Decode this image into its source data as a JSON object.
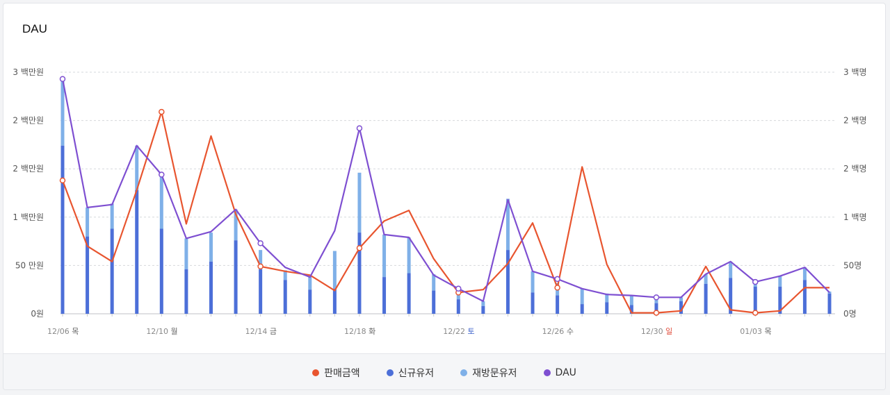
{
  "title": "DAU",
  "colors": {
    "sales": "#e8552f",
    "new_users": "#4c6fd8",
    "returning_users": "#7fb0e8",
    "dau": "#7e4fd1",
    "sunday": "#e04b3a",
    "saturday": "#3f63cc"
  },
  "legend": [
    {
      "label": "판매금액",
      "color": "#e8552f"
    },
    {
      "label": "신규유저",
      "color": "#4c6fd8"
    },
    {
      "label": "재방문유저",
      "color": "#7fb0e8"
    },
    {
      "label": "DAU",
      "color": "#7e4fd1"
    }
  ],
  "chart_data": {
    "type": "bar",
    "title": "DAU",
    "left_axis": {
      "ticks": [
        "0원",
        "50 만원",
        "1 백만원",
        "2 백만원",
        "2 백만원",
        "3 백만원"
      ],
      "tick_values": [
        0,
        50,
        100,
        150,
        200,
        250
      ],
      "range": [
        0,
        250
      ]
    },
    "right_axis": {
      "ticks": [
        "0명",
        "50명",
        "1 백명",
        "2 백명",
        "2 백명",
        "3 백명"
      ],
      "tick_values": [
        0,
        50,
        100,
        150,
        200,
        250
      ],
      "range": [
        0,
        250
      ]
    },
    "x_labels": [
      {
        "index": 0,
        "date": "12/06",
        "day": "목",
        "day_type": "normal"
      },
      {
        "index": 4,
        "date": "12/10",
        "day": "월",
        "day_type": "normal"
      },
      {
        "index": 8,
        "date": "12/14",
        "day": "금",
        "day_type": "normal"
      },
      {
        "index": 12,
        "date": "12/18",
        "day": "화",
        "day_type": "normal"
      },
      {
        "index": 16,
        "date": "12/22",
        "day": "토",
        "day_type": "saturday"
      },
      {
        "index": 20,
        "date": "12/26",
        "day": "수",
        "day_type": "normal"
      },
      {
        "index": 24,
        "date": "12/30",
        "day": "일",
        "day_type": "sunday"
      },
      {
        "index": 28,
        "date": "01/03",
        "day": "목",
        "day_type": "normal"
      }
    ],
    "series": [
      {
        "name": "신규유저",
        "type": "bar",
        "stack": "users",
        "axis": "right",
        "values": [
          174,
          80,
          88,
          128,
          88,
          46,
          54,
          76,
          46,
          35,
          25,
          26,
          84,
          38,
          42,
          24,
          15,
          8,
          66,
          22,
          19,
          10,
          12,
          9,
          11,
          13,
          31,
          37,
          28,
          28,
          35,
          21
        ]
      },
      {
        "name": "재방문유저",
        "type": "bar",
        "stack": "users",
        "axis": "right",
        "values": [
          67,
          30,
          26,
          46,
          55,
          32,
          30,
          32,
          20,
          10,
          14,
          39,
          62,
          44,
          37,
          17,
          9,
          5,
          53,
          22,
          13,
          16,
          9,
          10,
          6,
          4,
          10,
          17,
          4,
          11,
          13,
          2
        ]
      },
      {
        "name": "DAU",
        "type": "line",
        "axis": "right",
        "marker_indices": [
          0,
          4,
          8,
          12,
          16,
          20,
          24,
          28
        ],
        "values": [
          243,
          110,
          113,
          174,
          144,
          78,
          85,
          108,
          73,
          48,
          38,
          86,
          192,
          82,
          79,
          40,
          26,
          13,
          118,
          44,
          36,
          26,
          20,
          19,
          17,
          17,
          41,
          54,
          33,
          39,
          48,
          22
        ]
      },
      {
        "name": "판매금액",
        "type": "line",
        "axis": "left",
        "marker_indices": [
          0,
          4,
          8,
          12,
          16,
          20,
          24,
          28
        ],
        "values": [
          138,
          70,
          54,
          128,
          209,
          93,
          184,
          103,
          49,
          44,
          40,
          24,
          68,
          96,
          107,
          57,
          22,
          25,
          52,
          94,
          27,
          152,
          51,
          1,
          1,
          3,
          49,
          4,
          1,
          3,
          27,
          27
        ]
      }
    ]
  }
}
